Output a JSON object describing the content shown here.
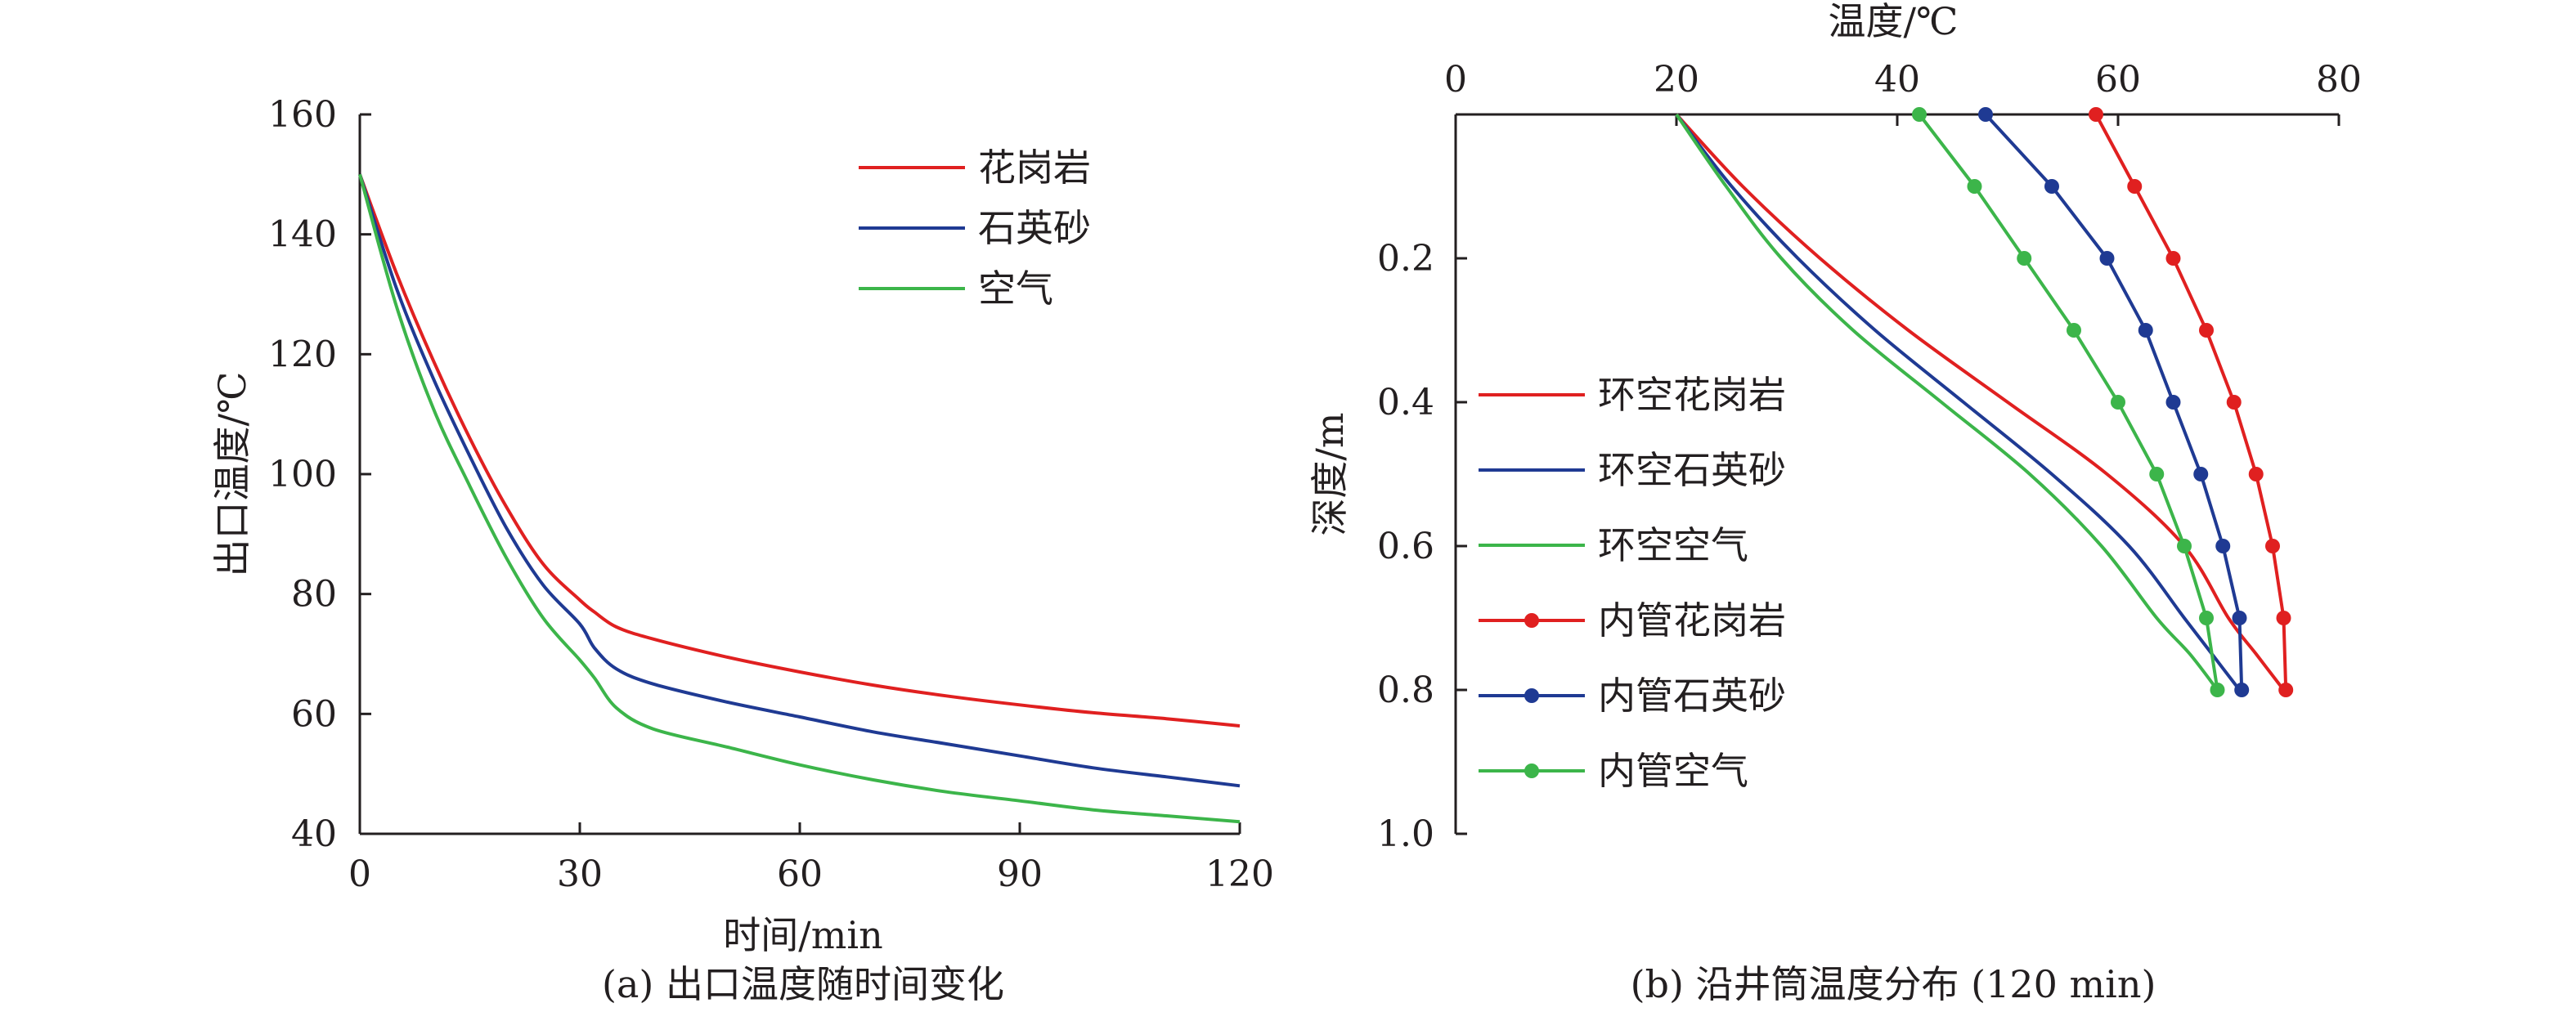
{
  "chart_data": [
    {
      "type": "line",
      "caption": "(a) 出口温度随时间变化",
      "xlabel": "时间/min",
      "ylabel": "出口温度/℃",
      "xlim": [
        0,
        120
      ],
      "ylim": [
        40,
        160
      ],
      "xticks": [
        0,
        30,
        60,
        90,
        120
      ],
      "yticks": [
        40,
        60,
        80,
        100,
        120,
        140,
        160
      ],
      "legend_position": "top-right",
      "grid": false,
      "x": [
        0,
        5,
        10,
        15,
        20,
        25,
        30,
        32,
        35,
        40,
        50,
        60,
        70,
        80,
        90,
        100,
        110,
        120
      ],
      "series": [
        {
          "name": "花岗岩",
          "color": "#e02020",
          "values": [
            150,
            133.5,
            119,
            106,
            94.5,
            85,
            79,
            77,
            74.5,
            72.5,
            69.5,
            67,
            64.8,
            63,
            61.5,
            60.2,
            59.2,
            58
          ]
        },
        {
          "name": "石英砂",
          "color": "#1f3a93",
          "values": [
            150,
            131,
            116,
            103,
            91,
            81.5,
            75,
            71,
            67.5,
            65,
            62,
            59.5,
            57,
            55,
            53,
            51,
            49.5,
            48
          ]
        },
        {
          "name": "空气",
          "color": "#3cb54a",
          "values": [
            150,
            128,
            111,
            98,
            86,
            76,
            69,
            66,
            61,
            57.5,
            54.5,
            51.5,
            49,
            47,
            45.5,
            44,
            43,
            42
          ]
        }
      ]
    },
    {
      "type": "line",
      "caption": "(b) 沿井筒温度分布 (120 min)",
      "xlabel": "温度/℃",
      "ylabel": "深度/m",
      "xlim": [
        0,
        80
      ],
      "ylim": [
        0,
        1.0
      ],
      "y_inverted": true,
      "x_axis_position": "top",
      "xticks": [
        0,
        20,
        40,
        60,
        80
      ],
      "yticks": [
        0.2,
        0.4,
        0.6,
        0.8,
        1.0
      ],
      "legend_position": "left",
      "grid": false,
      "series": [
        {
          "name": "环空花岗岩",
          "color": "#e02020",
          "marker": "none",
          "x": [
            20,
            26,
            33,
            41,
            50,
            59,
            66,
            70,
            72.5,
            75
          ],
          "y": [
            0,
            0.1,
            0.2,
            0.3,
            0.4,
            0.5,
            0.6,
            0.7,
            0.75,
            0.8
          ]
        },
        {
          "name": "环空石英砂",
          "color": "#1f3a93",
          "marker": "none",
          "x": [
            20,
            25,
            31,
            38,
            46,
            54,
            61,
            66,
            68.5,
            71
          ],
          "y": [
            0,
            0.1,
            0.2,
            0.3,
            0.4,
            0.5,
            0.6,
            0.7,
            0.75,
            0.8
          ]
        },
        {
          "name": "环空空气",
          "color": "#3cb54a",
          "marker": "none",
          "x": [
            20,
            24.5,
            29.5,
            36,
            44,
            52,
            58.5,
            63.5,
            66.5,
            69
          ],
          "y": [
            0,
            0.1,
            0.2,
            0.3,
            0.4,
            0.5,
            0.6,
            0.7,
            0.75,
            0.8
          ]
        },
        {
          "name": "内管花岗岩",
          "color": "#e02020",
          "marker": "circle",
          "x": [
            58,
            61.5,
            65,
            68,
            70.5,
            72.5,
            74,
            75,
            75.2
          ],
          "y": [
            0,
            0.1,
            0.2,
            0.3,
            0.4,
            0.5,
            0.6,
            0.7,
            0.8
          ]
        },
        {
          "name": "内管石英砂",
          "color": "#1f3a93",
          "marker": "circle",
          "x": [
            48,
            54,
            59,
            62.5,
            65,
            67.5,
            69.5,
            71,
            71.2
          ],
          "y": [
            0,
            0.1,
            0.2,
            0.3,
            0.4,
            0.5,
            0.6,
            0.7,
            0.8
          ]
        },
        {
          "name": "内管空气",
          "color": "#3cb54a",
          "marker": "circle",
          "x": [
            42,
            47,
            51.5,
            56,
            60,
            63.5,
            66,
            68,
            69
          ],
          "y": [
            0,
            0.1,
            0.2,
            0.3,
            0.4,
            0.5,
            0.6,
            0.7,
            0.8
          ]
        }
      ]
    }
  ]
}
